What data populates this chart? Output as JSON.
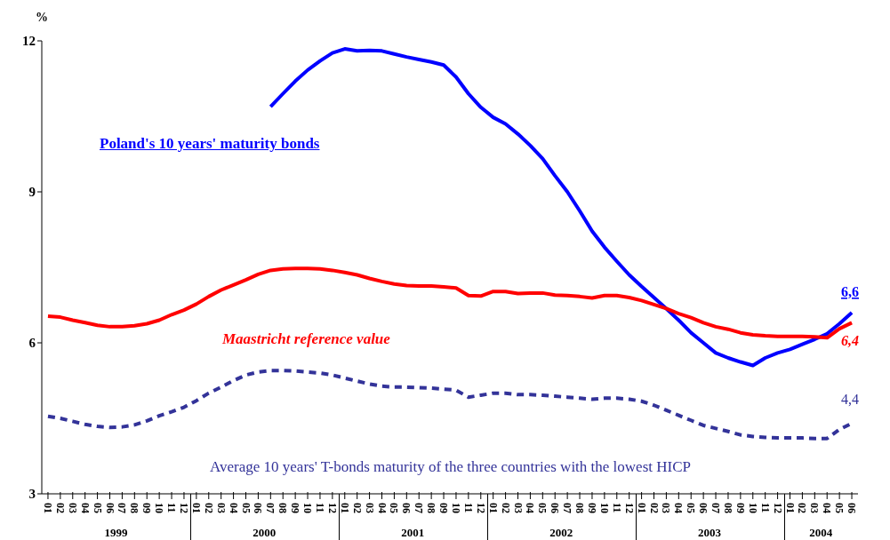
{
  "chart_data": {
    "type": "line",
    "ylabel": "%",
    "ylim": [
      3,
      12
    ],
    "yticks": [
      3,
      6,
      9,
      12
    ],
    "grid": false,
    "legend": false,
    "marker": "none",
    "categories": [
      "01",
      "02",
      "03",
      "04",
      "05",
      "06",
      "07",
      "08",
      "09",
      "10",
      "11",
      "12",
      "01",
      "02",
      "03",
      "04",
      "05",
      "06",
      "07",
      "08",
      "09",
      "10",
      "11",
      "12",
      "01",
      "02",
      "03",
      "04",
      "05",
      "06",
      "07",
      "08",
      "09",
      "10",
      "11",
      "12",
      "01",
      "02",
      "03",
      "04",
      "05",
      "06",
      "07",
      "08",
      "09",
      "10",
      "11",
      "12",
      "01",
      "02",
      "03",
      "04",
      "05",
      "06",
      "07",
      "08",
      "09",
      "10",
      "11",
      "12",
      "01",
      "02",
      "03",
      "04",
      "05",
      "06"
    ],
    "annotations": [
      "1999",
      "2000",
      "2001",
      "2002",
      "2003",
      "2004"
    ],
    "series": [
      {
        "name": "Poland's 10 years' maturity bonds",
        "color": "#0000ff",
        "line_style": "solid",
        "values": [
          null,
          null,
          null,
          null,
          null,
          null,
          null,
          null,
          null,
          null,
          null,
          null,
          null,
          null,
          null,
          null,
          null,
          null,
          10.69,
          10.95,
          11.2,
          11.42,
          11.6,
          11.76,
          11.84,
          11.8,
          11.81,
          11.8,
          11.74,
          11.68,
          11.63,
          11.58,
          11.52,
          11.28,
          10.95,
          10.68,
          10.48,
          10.35,
          10.15,
          9.92,
          9.66,
          9.32,
          9.0,
          8.62,
          8.22,
          7.9,
          7.62,
          7.35,
          7.12,
          6.9,
          6.68,
          6.45,
          6.2,
          6.0,
          5.8,
          5.7,
          5.62,
          5.55,
          5.7,
          5.8,
          5.87,
          5.97,
          6.07,
          6.18,
          6.38,
          6.6
        ],
        "value_labels": [
          null,
          null,
          null,
          null,
          null,
          null,
          null,
          null,
          null,
          null,
          null,
          null,
          null,
          null,
          null,
          null,
          null,
          null,
          null,
          null,
          null,
          null,
          null,
          null,
          null,
          null,
          null,
          null,
          null,
          null,
          null,
          null,
          null,
          null,
          null,
          null,
          null,
          null,
          null,
          null,
          null,
          null,
          null,
          null,
          null,
          null,
          null,
          null,
          null,
          null,
          null,
          null,
          null,
          null,
          null,
          null,
          null,
          null,
          null,
          null,
          null,
          null,
          null,
          null,
          null,
          "6,6"
        ]
      },
      {
        "name": "Maastricht reference value",
        "color": "#ff0000",
        "line_style": "solid",
        "values": [
          6.53,
          6.51,
          6.45,
          6.4,
          6.35,
          6.32,
          6.32,
          6.34,
          6.38,
          6.45,
          6.56,
          6.65,
          6.77,
          6.92,
          7.05,
          7.15,
          7.25,
          7.36,
          7.44,
          7.47,
          7.48,
          7.48,
          7.47,
          7.44,
          7.4,
          7.35,
          7.28,
          7.22,
          7.17,
          7.14,
          7.13,
          7.13,
          7.11,
          7.09,
          6.94,
          6.93,
          7.02,
          7.02,
          6.98,
          6.99,
          6.99,
          6.95,
          6.94,
          6.92,
          6.89,
          6.94,
          6.94,
          6.9,
          6.84,
          6.76,
          6.68,
          6.58,
          6.5,
          6.4,
          6.32,
          6.27,
          6.2,
          6.16,
          6.14,
          6.13,
          6.13,
          6.13,
          6.12,
          6.1,
          6.28,
          6.4
        ],
        "value_labels": [
          null,
          null,
          null,
          null,
          null,
          null,
          null,
          null,
          null,
          null,
          null,
          null,
          null,
          null,
          null,
          null,
          null,
          null,
          null,
          null,
          null,
          null,
          null,
          null,
          null,
          null,
          null,
          null,
          null,
          null,
          null,
          null,
          null,
          null,
          null,
          null,
          null,
          null,
          null,
          null,
          null,
          null,
          null,
          null,
          null,
          null,
          null,
          null,
          null,
          null,
          null,
          null,
          null,
          null,
          null,
          null,
          null,
          null,
          null,
          null,
          null,
          null,
          null,
          null,
          null,
          "6,4"
        ]
      },
      {
        "name": "Average 10 years' T-bonds maturity of the three countries with the lowest HICP",
        "color": "#333399",
        "line_style": "dashed",
        "values": [
          4.54,
          4.5,
          4.44,
          4.38,
          4.34,
          4.32,
          4.33,
          4.37,
          4.45,
          4.55,
          4.63,
          4.72,
          4.85,
          5.0,
          5.12,
          5.25,
          5.36,
          5.42,
          5.45,
          5.45,
          5.44,
          5.42,
          5.4,
          5.36,
          5.3,
          5.24,
          5.18,
          5.14,
          5.12,
          5.12,
          5.11,
          5.1,
          5.08,
          5.06,
          4.92,
          4.96,
          5.0,
          5.0,
          4.97,
          4.97,
          4.96,
          4.94,
          4.92,
          4.9,
          4.88,
          4.9,
          4.9,
          4.88,
          4.84,
          4.76,
          4.66,
          4.56,
          4.46,
          4.36,
          4.3,
          4.24,
          4.17,
          4.14,
          4.12,
          4.11,
          4.11,
          4.11,
          4.1,
          4.1,
          4.28,
          4.4
        ],
        "value_labels": [
          null,
          null,
          null,
          null,
          null,
          null,
          null,
          null,
          null,
          null,
          null,
          null,
          null,
          null,
          null,
          null,
          null,
          null,
          null,
          null,
          null,
          null,
          null,
          null,
          null,
          null,
          null,
          null,
          null,
          null,
          null,
          null,
          null,
          null,
          null,
          null,
          null,
          null,
          null,
          null,
          null,
          null,
          null,
          null,
          null,
          null,
          null,
          null,
          null,
          null,
          null,
          null,
          null,
          null,
          null,
          null,
          null,
          null,
          null,
          null,
          null,
          null,
          null,
          null,
          null,
          "4,4"
        ]
      }
    ]
  }
}
